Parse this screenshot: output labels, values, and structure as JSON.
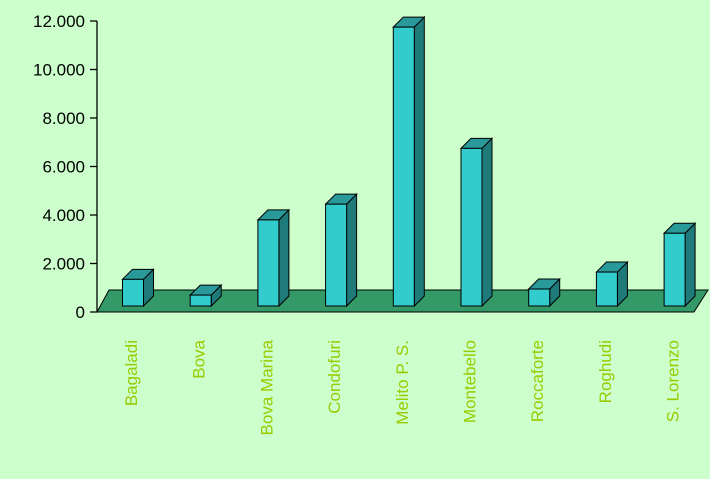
{
  "chart_data": {
    "type": "bar",
    "style": "3d-column",
    "categories": [
      "Bagaladi",
      "Bova",
      "Bova Marina",
      "Condofuri",
      "Melito P. S.",
      "Montebello",
      "Roccaforte",
      "Roghudi",
      "S. Lorenzo"
    ],
    "values": [
      1100,
      450,
      3550,
      4200,
      11500,
      6500,
      700,
      1400,
      3000
    ],
    "ylim": [
      0,
      12000
    ],
    "yticks": [
      0,
      2000,
      4000,
      6000,
      8000,
      10000,
      12000
    ],
    "ytick_labels": [
      "0",
      "2.000",
      "4.000",
      "6.000",
      "8.000",
      "10.000",
      "12.000"
    ],
    "grid": false,
    "legend": "none",
    "title": "",
    "xlabel": "",
    "ylabel": ""
  },
  "colors": {
    "background": "#ccffcc",
    "floor": "#339966",
    "bar_front": "#33cccc",
    "bar_top": "#299999",
    "bar_side": "#1f7a7a",
    "axis_label": "#99cc00",
    "tick_label": "#000000"
  }
}
